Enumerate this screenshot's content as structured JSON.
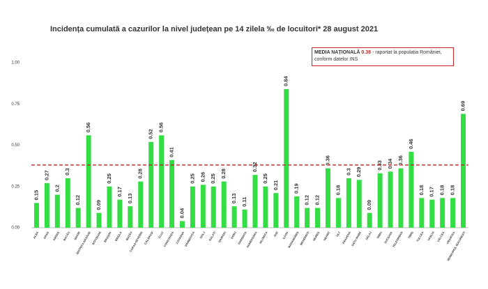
{
  "chart_data": {
    "type": "bar",
    "title": "Incidența cumulată a cazurilor la nivel județean pe 14 zilela ‰ de locuitori* 28 august 2021",
    "categories": [
      "ALBA",
      "ARAD",
      "ARGEȘ",
      "BACĂU",
      "BIHOR",
      "BISTRIȚA-NĂSĂUD",
      "BOTOȘANI",
      "BRAȘOV",
      "BRĂILA",
      "BUZĂU",
      "CARAȘ-SEVERIN",
      "CĂLĂRAȘI",
      "CLUJ",
      "CONSTANȚA",
      "COVASNA",
      "DÂMBOVIȚA",
      "DOLJ",
      "GALAȚI",
      "GIURGIU",
      "GORJ",
      "HARGHITA",
      "HUNEDOARA",
      "IALOMIȚA",
      "IAȘI",
      "ILFOV",
      "MARAMUREȘ",
      "MEHEDINȚI",
      "MUREȘ",
      "NEAMȚ",
      "OLT",
      "PRAHOVA",
      "SATU MARE",
      "SĂLAJ",
      "SIBIU",
      "SUCEAVA",
      "TELEORMAN",
      "TIMIȘ",
      "TULCEA",
      "VASLUI",
      "VÂLCEA",
      "VRANCEA",
      "MUNICIPIUL BUCUREȘTI"
    ],
    "values": [
      0.15,
      0.27,
      0.2,
      0.3,
      0.12,
      0.56,
      0.09,
      0.25,
      0.17,
      0.13,
      0.28,
      0.52,
      0.56,
      0.41,
      0.04,
      0.25,
      0.26,
      0.25,
      0.28,
      0.13,
      0.11,
      0.32,
      0.25,
      0.21,
      0.84,
      0.19,
      0.12,
      0.12,
      0.36,
      0.18,
      0.3,
      0.29,
      0.09,
      0.33,
      0.34,
      0.36,
      0.46,
      0.18,
      0.17,
      0.18,
      0.18,
      0.69
    ],
    "color": "#33dd44",
    "ylim": [
      0,
      1.1
    ],
    "yticks": [
      {
        "value": 0,
        "label": "0.00"
      },
      {
        "value": 0.25,
        "label": "0.25"
      },
      {
        "value": 0.5,
        "label": "0.50"
      },
      {
        "value": 0.75,
        "label": "0.75"
      },
      {
        "value": 1,
        "label": "1.00"
      }
    ],
    "grid": false,
    "reference": {
      "label": "MEDIA NAȚIONALĂ",
      "value": 0.38,
      "text": "- raportat la populația României, conform datelor INS",
      "color": "#cc2222"
    }
  }
}
